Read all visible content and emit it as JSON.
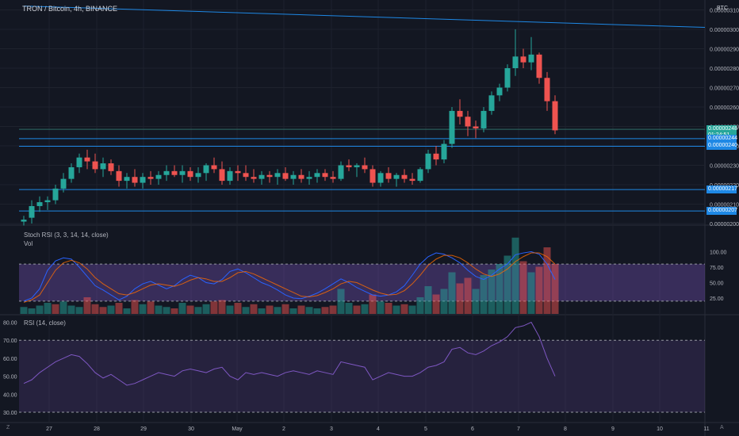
{
  "header": {
    "title": "TRON / Bitcoin, 4h, BINANCE",
    "currency_badge": "BTC"
  },
  "price_axis": {
    "ticks": [
      "0.00000310",
      "0.00000300",
      "0.00000290",
      "0.00000280",
      "0.00000270",
      "0.00000260",
      "0.00000250",
      "0.00000240",
      "0.00000230",
      "0.00000220",
      "0.00000210",
      "0.00000200"
    ],
    "labels": [
      {
        "text": "0.00000248",
        "color": "#26a69a",
        "value": 248.5
      },
      {
        "text": "01:24:51",
        "color": "#26a69a",
        "value": 245.4
      },
      {
        "text": "0.00000244",
        "color": "#1e88e5",
        "value": 243.7
      },
      {
        "text": "0.00000240",
        "color": "#1e88e5",
        "value": 239.8
      },
      {
        "text": "0.00000217",
        "color": "#1e88e5",
        "value": 217.5
      },
      {
        "text": "0.00000207",
        "color": "#1e88e5",
        "value": 206.5
      }
    ]
  },
  "indicators": {
    "stoch_label": "Stoch RSI (3, 3, 14, 14, close)",
    "vol_label": "Vol",
    "stoch_ticks": [
      "100.00",
      "75.00",
      "50.00",
      "25.00"
    ],
    "rsi_label": "RSI (14, close)",
    "rsi_ticks": [
      "80.00",
      "70.00",
      "60.00",
      "50.00",
      "40.00",
      "30.00"
    ]
  },
  "time_axis": {
    "labels": [
      "27",
      "28",
      "29",
      "30",
      "May",
      "2",
      "3",
      "4",
      "5",
      "6",
      "7",
      "8",
      "9",
      "10",
      "11"
    ]
  },
  "corners": {
    "left": "Z",
    "right": "A"
  },
  "colors": {
    "up": "#26a69a",
    "down": "#ef5350",
    "background": "#131722",
    "line": "#1e88e5"
  },
  "chart_data": {
    "type": "candlestick",
    "candles": [
      [
        201,
        204,
        199,
        202
      ],
      [
        203,
        212,
        200,
        209
      ],
      [
        209,
        214,
        206,
        211
      ],
      [
        211,
        214,
        207,
        212
      ],
      [
        212,
        220,
        210,
        218
      ],
      [
        218,
        226,
        216,
        223
      ],
      [
        223,
        231,
        221,
        229
      ],
      [
        229,
        236,
        226,
        234
      ],
      [
        234,
        238,
        228,
        232
      ],
      [
        232,
        236,
        226,
        228
      ],
      [
        228,
        234,
        224,
        231
      ],
      [
        231,
        233,
        225,
        227
      ],
      [
        227,
        230,
        219,
        222
      ],
      [
        222,
        226,
        218,
        224
      ],
      [
        224,
        228,
        219,
        221
      ],
      [
        221,
        226,
        218,
        224
      ],
      [
        224,
        227,
        220,
        223
      ],
      [
        223,
        227,
        220,
        225
      ],
      [
        225,
        230,
        222,
        227
      ],
      [
        227,
        230,
        224,
        225
      ],
      [
        225,
        230,
        221,
        227
      ],
      [
        227,
        229,
        222,
        224
      ],
      [
        224,
        229,
        221,
        226
      ],
      [
        226,
        231,
        222,
        230
      ],
      [
        230,
        234,
        226,
        228
      ],
      [
        228,
        232,
        220,
        222
      ],
      [
        222,
        229,
        220,
        227
      ],
      [
        227,
        230,
        222,
        226
      ],
      [
        226,
        230,
        222,
        224
      ],
      [
        224,
        228,
        221,
        223
      ],
      [
        223,
        227,
        220,
        225
      ],
      [
        225,
        227,
        221,
        224
      ],
      [
        224,
        228,
        220,
        226
      ],
      [
        226,
        229,
        222,
        223
      ],
      [
        223,
        227,
        220,
        225
      ],
      [
        225,
        228,
        221,
        223
      ],
      [
        223,
        227,
        220,
        224
      ],
      [
        224,
        228,
        221,
        226
      ],
      [
        226,
        228,
        222,
        224
      ],
      [
        224,
        227,
        221,
        223
      ],
      [
        223,
        232,
        222,
        230
      ],
      [
        230,
        233,
        227,
        229
      ],
      [
        229,
        231,
        224,
        230
      ],
      [
        230,
        234,
        226,
        228
      ],
      [
        228,
        230,
        219,
        221
      ],
      [
        221,
        227,
        219,
        226
      ],
      [
        226,
        229,
        221,
        223
      ],
      [
        223,
        226,
        219,
        225
      ],
      [
        225,
        228,
        221,
        223
      ],
      [
        223,
        226,
        220,
        222
      ],
      [
        222,
        229,
        221,
        228
      ],
      [
        228,
        238,
        226,
        236
      ],
      [
        236,
        240,
        230,
        233
      ],
      [
        233,
        243,
        231,
        241
      ],
      [
        241,
        260,
        239,
        258
      ],
      [
        258,
        264,
        251,
        255
      ],
      [
        255,
        258,
        245,
        250
      ],
      [
        250,
        253,
        244,
        249
      ],
      [
        249,
        260,
        247,
        258
      ],
      [
        258,
        268,
        256,
        266
      ],
      [
        266,
        272,
        263,
        270
      ],
      [
        270,
        282,
        268,
        280
      ],
      [
        280,
        300,
        276,
        286
      ],
      [
        286,
        290,
        280,
        283
      ],
      [
        283,
        296,
        279,
        287
      ],
      [
        287,
        288,
        272,
        275
      ],
      [
        275,
        278,
        258,
        263
      ],
      [
        263,
        266,
        246,
        248
      ]
    ],
    "resistance_line": {
      "from_index": 0,
      "from_value": 312,
      "to_value": 301
    },
    "levels": [
      248.5,
      243.7,
      239.8,
      217.5,
      206.5
    ],
    "stoch_k": [
      20,
      25,
      40,
      70,
      85,
      90,
      88,
      75,
      60,
      45,
      38,
      30,
      22,
      28,
      40,
      48,
      52,
      46,
      40,
      45,
      55,
      62,
      58,
      50,
      48,
      55,
      68,
      72,
      66,
      58,
      50,
      45,
      38,
      30,
      25,
      24,
      28,
      33,
      40,
      48,
      56,
      50,
      42,
      36,
      30,
      28,
      30,
      35,
      45,
      62,
      80,
      92,
      98,
      96,
      90,
      82,
      70,
      60,
      55,
      62,
      72,
      80,
      95,
      98,
      100,
      96,
      80,
      55
    ],
    "stoch_d": [
      18,
      22,
      30,
      50,
      70,
      82,
      86,
      82,
      72,
      58,
      48,
      40,
      32,
      30,
      34,
      40,
      46,
      48,
      46,
      44,
      48,
      54,
      58,
      56,
      52,
      52,
      58,
      66,
      68,
      64,
      58,
      52,
      46,
      40,
      34,
      28,
      27,
      29,
      34,
      40,
      48,
      52,
      50,
      44,
      38,
      33,
      30,
      31,
      37,
      48,
      62,
      78,
      88,
      94,
      94,
      90,
      82,
      72,
      64,
      60,
      64,
      72,
      84,
      92,
      98,
      98,
      92,
      80
    ],
    "volume": [
      [
        1,
        5
      ],
      [
        1,
        4
      ],
      [
        1,
        6
      ],
      [
        1,
        8
      ],
      [
        0,
        7
      ],
      [
        1,
        9
      ],
      [
        1,
        6
      ],
      [
        1,
        5
      ],
      [
        0,
        12
      ],
      [
        0,
        7
      ],
      [
        0,
        5
      ],
      [
        1,
        6
      ],
      [
        0,
        8
      ],
      [
        1,
        4
      ],
      [
        0,
        10
      ],
      [
        1,
        7
      ],
      [
        0,
        9
      ],
      [
        1,
        6
      ],
      [
        1,
        5
      ],
      [
        0,
        4
      ],
      [
        1,
        8
      ],
      [
        0,
        6
      ],
      [
        1,
        5
      ],
      [
        1,
        7
      ],
      [
        0,
        9
      ],
      [
        0,
        10
      ],
      [
        1,
        6
      ],
      [
        0,
        8
      ],
      [
        1,
        5
      ],
      [
        0,
        7
      ],
      [
        1,
        4
      ],
      [
        0,
        6
      ],
      [
        1,
        5
      ],
      [
        0,
        7
      ],
      [
        1,
        4
      ],
      [
        0,
        6
      ],
      [
        1,
        5
      ],
      [
        1,
        4
      ],
      [
        0,
        5
      ],
      [
        0,
        6
      ],
      [
        1,
        18
      ],
      [
        1,
        8
      ],
      [
        0,
        6
      ],
      [
        1,
        7
      ],
      [
        0,
        14
      ],
      [
        1,
        9
      ],
      [
        0,
        8
      ],
      [
        1,
        6
      ],
      [
        0,
        7
      ],
      [
        1,
        6
      ],
      [
        1,
        12
      ],
      [
        1,
        20
      ],
      [
        0,
        14
      ],
      [
        1,
        18
      ],
      [
        1,
        30
      ],
      [
        0,
        22
      ],
      [
        0,
        26
      ],
      [
        1,
        18
      ],
      [
        1,
        28
      ],
      [
        1,
        32
      ],
      [
        1,
        36
      ],
      [
        1,
        42
      ],
      [
        1,
        55
      ],
      [
        0,
        38
      ],
      [
        1,
        30
      ],
      [
        0,
        34
      ],
      [
        0,
        48
      ],
      [
        0,
        36
      ]
    ],
    "rsi": [
      46,
      48,
      52,
      55,
      58,
      60,
      62,
      61,
      57,
      52,
      49,
      51,
      48,
      45,
      46,
      48,
      50,
      52,
      51,
      50,
      53,
      54,
      53,
      52,
      54,
      55,
      50,
      48,
      52,
      51,
      52,
      51,
      50,
      52,
      53,
      52,
      51,
      53,
      52,
      51,
      58,
      57,
      56,
      55,
      48,
      50,
      52,
      51,
      50,
      50,
      52,
      55,
      56,
      58,
      65,
      66,
      63,
      62,
      64,
      67,
      69,
      72,
      77,
      78,
      80,
      72,
      60,
      50
    ]
  }
}
